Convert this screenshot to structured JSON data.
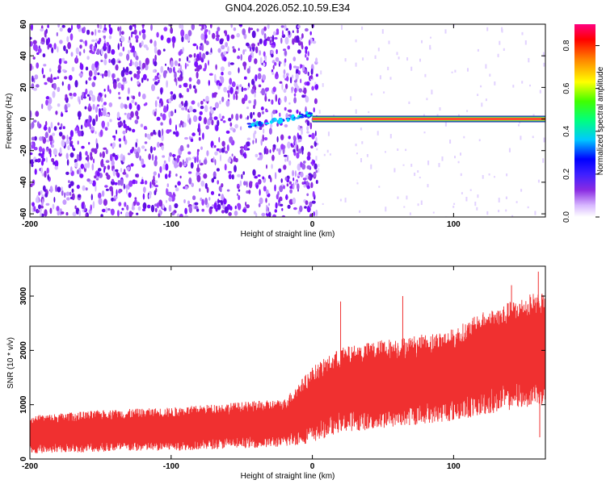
{
  "title": "GN04.2026.052.10.59.E34",
  "chart_data": [
    {
      "type": "heatmap",
      "xlabel": "Height of straight line (km)",
      "ylabel": "Frequency (Hz)",
      "xlim": [
        -200,
        165
      ],
      "ylim": [
        -62,
        60
      ],
      "x_ticks": [
        -200,
        -100,
        0,
        100
      ],
      "y_ticks": [
        -60,
        -40,
        -20,
        0,
        20,
        40,
        60
      ],
      "noise_region_x": [
        -200,
        0
      ],
      "signal_line": {
        "x_start": 0,
        "x_end": 165,
        "frequency": 0
      },
      "signal_onset": {
        "x": [
          -45,
          0
        ],
        "frequency": [
          -4,
          3
        ]
      },
      "colorbar": {
        "label": "Normalized spectral amplitude",
        "range": [
          0,
          0.9
        ],
        "ticks": [
          0,
          0.2,
          0.4,
          0.6,
          0.8
        ],
        "colors": [
          "#ffffff",
          "#d8b8ff",
          "#8a2be2",
          "#4020ff",
          "#0000ff",
          "#00c8ff",
          "#00ff80",
          "#40ff00",
          "#ffff00",
          "#ff8000",
          "#ff0000",
          "#ff0080"
        ]
      }
    },
    {
      "type": "line",
      "xlabel": "Height of straight line (km)",
      "ylabel": "SNR (10 * v/v)",
      "xlim": [
        -200,
        165
      ],
      "ylim": [
        0,
        3550
      ],
      "x_ticks": [
        -200,
        -100,
        0,
        100
      ],
      "y_ticks": [
        0,
        1000,
        2000,
        3000
      ],
      "color": "#f03030",
      "envelope": {
        "x": [
          -200,
          -150,
          -100,
          -50,
          -20,
          0,
          20,
          50,
          80,
          100,
          120,
          140,
          160,
          165
        ],
        "low": [
          100,
          130,
          150,
          200,
          220,
          300,
          500,
          550,
          650,
          700,
          800,
          900,
          1000,
          950
        ],
        "high": [
          800,
          900,
          950,
          1050,
          1100,
          1700,
          2050,
          2200,
          2300,
          2400,
          2700,
          2900,
          3100,
          3000
        ]
      },
      "spikes": [
        {
          "x": 20,
          "y": 2900
        },
        {
          "x": 64,
          "y": 3000
        },
        {
          "x": 141,
          "y": 3200
        },
        {
          "x": 160,
          "y": 3450
        },
        {
          "x": 161,
          "y": 400
        }
      ]
    }
  ]
}
